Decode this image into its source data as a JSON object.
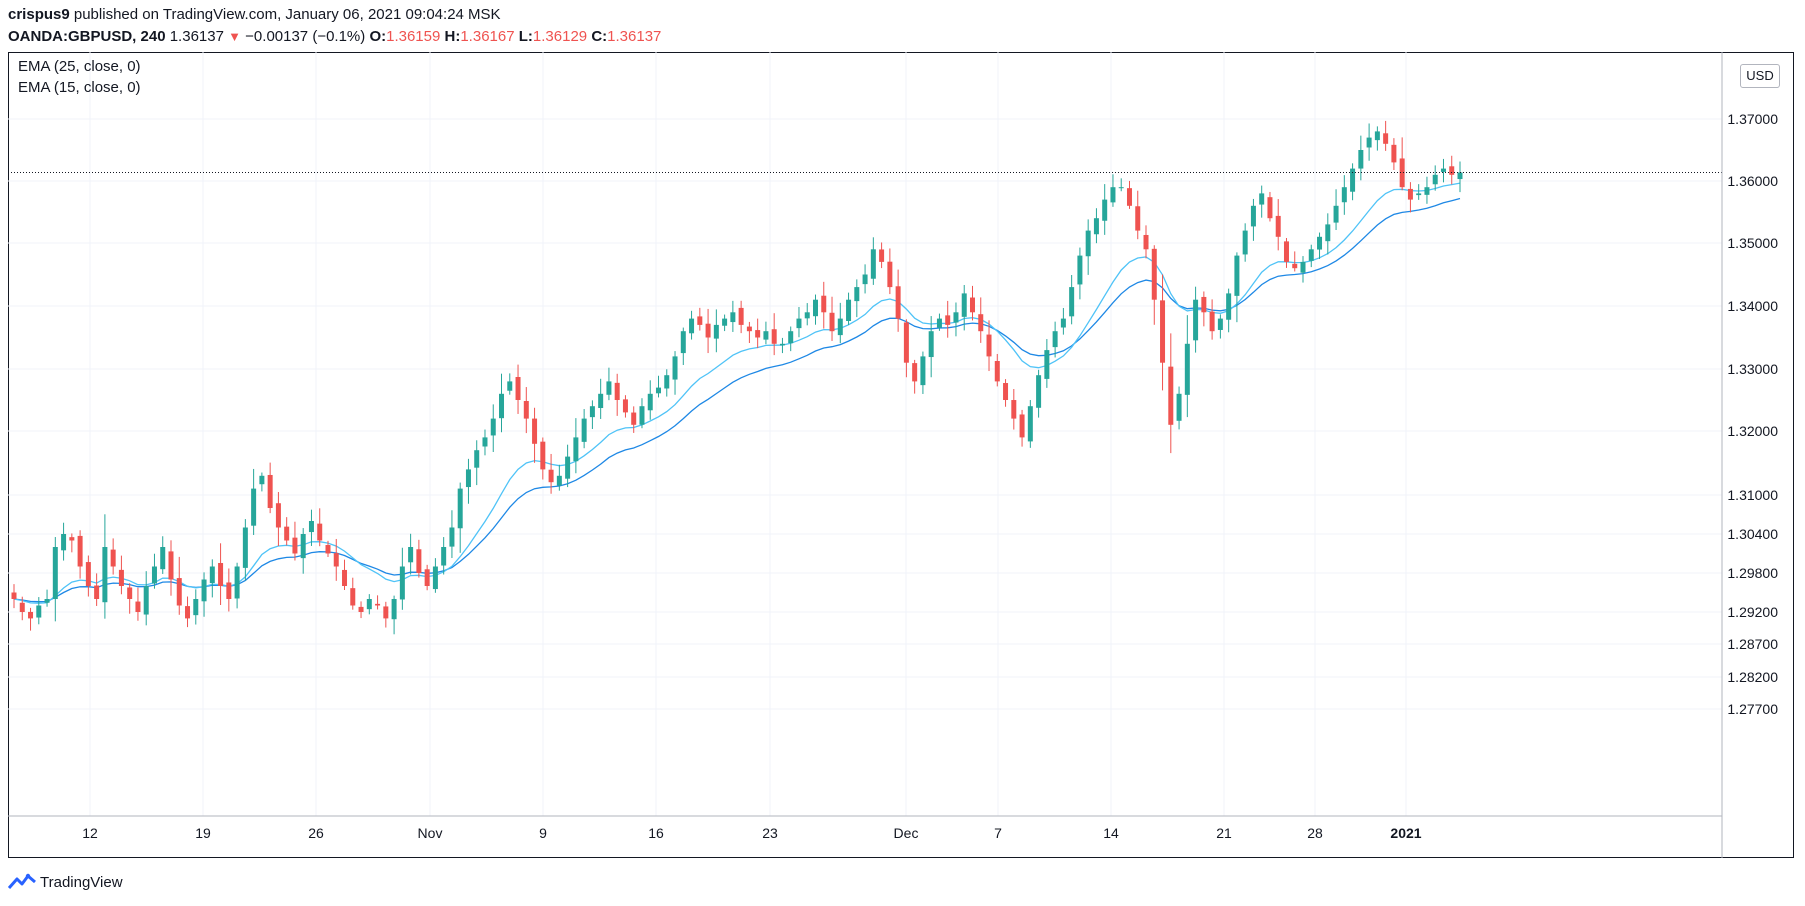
{
  "header": {
    "user": "crispus9",
    "published_text": "published on TradingView.com, January 06, 2021 09:04:24 MSK",
    "symbol": "OANDA:GBPUSD",
    "interval": "240",
    "last_price": "1.36137",
    "change": "−0.00137 (−0.1%)",
    "open_label": "O:",
    "open": "1.36159",
    "high_label": "H:",
    "high": "1.36167",
    "low_label": "L:",
    "low": "1.36129",
    "close_label": "C:",
    "close": "1.36137",
    "down_color": "#ef5350"
  },
  "indicators": [
    "EMA (25, close, 0)",
    "EMA (15, close, 0)"
  ],
  "currency_badge": "USD",
  "footer": {
    "brand": "TradingView",
    "logo_icon": "tradingview-logo-icon"
  },
  "chart_data": {
    "type": "candlestick",
    "symbol": "OANDA:GBPUSD",
    "x_tick_labels": [
      "12",
      "19",
      "26",
      "Nov",
      "9",
      "16",
      "23",
      "Dec",
      "7",
      "14",
      "21",
      "28",
      "2021"
    ],
    "y_tick_labels": [
      "1.37000",
      "1.36000",
      "1.35000",
      "1.34000",
      "1.33000",
      "1.32000",
      "1.31000",
      "1.30400",
      "1.29800",
      "1.29200",
      "1.28700",
      "1.28200",
      "1.27700"
    ],
    "ylim": [
      1.275,
      1.381
    ],
    "current_price": 1.36137,
    "grid": true,
    "up_color": "#26a69a",
    "down_color": "#ef5350",
    "ema_color": "#2196f3",
    "close_path": [
      1.294,
      1.292,
      1.291,
      1.293,
      1.294,
      1.302,
      1.304,
      1.303,
      1.299,
      1.296,
      1.294,
      1.302,
      1.299,
      1.296,
      1.294,
      1.292,
      1.296,
      1.299,
      1.302,
      1.297,
      1.293,
      1.291,
      1.294,
      1.297,
      1.299,
      1.296,
      1.294,
      1.299,
      1.305,
      1.311,
      1.313,
      1.308,
      1.305,
      1.303,
      1.301,
      1.304,
      1.306,
      1.303,
      1.301,
      1.299,
      1.296,
      1.293,
      1.292,
      1.294,
      1.293,
      1.291,
      1.294,
      1.299,
      1.302,
      1.298,
      1.296,
      1.299,
      1.302,
      1.305,
      1.311,
      1.314,
      1.317,
      1.319,
      1.322,
      1.326,
      1.328,
      1.325,
      1.322,
      1.318,
      1.314,
      1.312,
      1.313,
      1.316,
      1.319,
      1.322,
      1.324,
      1.326,
      1.328,
      1.325,
      1.323,
      1.321,
      1.324,
      1.326,
      1.327,
      1.329,
      1.332,
      1.336,
      1.338,
      1.337,
      1.335,
      1.337,
      1.338,
      1.339,
      1.337,
      1.336,
      1.335,
      1.336,
      1.334,
      1.334,
      1.336,
      1.338,
      1.339,
      1.341,
      1.339,
      1.336,
      1.338,
      1.341,
      1.343,
      1.345,
      1.349,
      1.347,
      1.343,
      1.338,
      1.331,
      1.328,
      1.332,
      1.336,
      1.338,
      1.337,
      1.339,
      1.342,
      1.339,
      1.336,
      1.332,
      1.328,
      1.325,
      1.322,
      1.319,
      1.324,
      1.329,
      1.333,
      1.336,
      1.338,
      1.343,
      1.348,
      1.352,
      1.354,
      1.357,
      1.359,
      1.359,
      1.356,
      1.352,
      1.349,
      1.341,
      1.331,
      1.321,
      1.326,
      1.334,
      1.341,
      1.339,
      1.336,
      1.338,
      1.342,
      1.348,
      1.352,
      1.356,
      1.358,
      1.354,
      1.351,
      1.347,
      1.346,
      1.347,
      1.349,
      1.351,
      1.353,
      1.356,
      1.359,
      1.362,
      1.365,
      1.367,
      1.368,
      1.366,
      1.363,
      1.359,
      1.357,
      1.358,
      1.359,
      1.361,
      1.362,
      1.361,
      1.36137
    ]
  }
}
